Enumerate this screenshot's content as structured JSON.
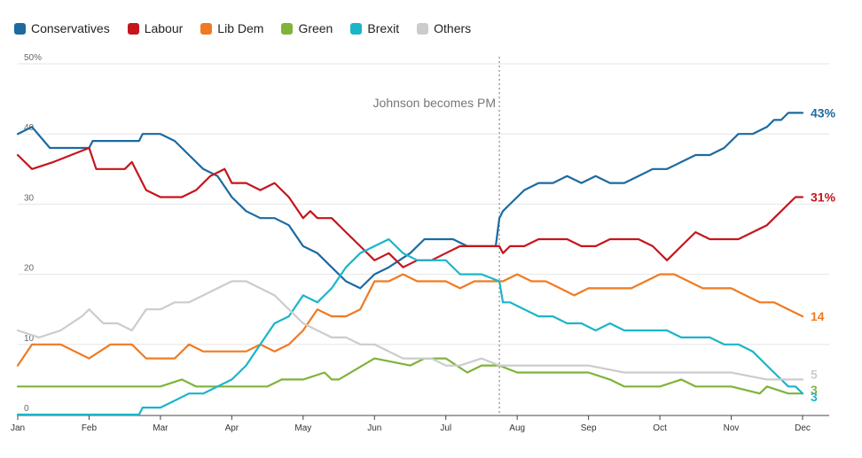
{
  "chart_data": {
    "type": "line",
    "title": "",
    "xlabel": "",
    "ylabel": "",
    "ylim": [
      0,
      50
    ],
    "xlim": [
      0,
      11
    ],
    "x_note": "x is months since 1 Jan (Jan=0 ... Dec=11)",
    "y_ticks": [
      {
        "value": 50,
        "label": "50%"
      },
      {
        "value": 40,
        "label": "40"
      },
      {
        "value": 30,
        "label": "30"
      },
      {
        "value": 20,
        "label": "20"
      },
      {
        "value": 10,
        "label": "10"
      },
      {
        "value": 0,
        "label": "0"
      }
    ],
    "x_ticks": [
      {
        "value": 0,
        "label": "Jan"
      },
      {
        "value": 1,
        "label": "Feb"
      },
      {
        "value": 2,
        "label": "Mar"
      },
      {
        "value": 3,
        "label": "Apr"
      },
      {
        "value": 4,
        "label": "May"
      },
      {
        "value": 5,
        "label": "Jun"
      },
      {
        "value": 6,
        "label": "Jul"
      },
      {
        "value": 7,
        "label": "Aug"
      },
      {
        "value": 8,
        "label": "Sep"
      },
      {
        "value": 9,
        "label": "Oct"
      },
      {
        "value": 10,
        "label": "Nov"
      },
      {
        "value": 11,
        "label": "Dec"
      }
    ],
    "annotation": {
      "text": "Johnson becomes PM",
      "x": 6.75
    },
    "legend_position": "top-left",
    "series": [
      {
        "name": "Conservatives",
        "color": "#1c6aa0",
        "end_label": "43%",
        "x": [
          0,
          0.2,
          0.45,
          1.0,
          1.05,
          1.7,
          1.75,
          2.0,
          2.2,
          2.4,
          2.6,
          2.8,
          3.0,
          3.2,
          3.4,
          3.6,
          3.8,
          4.0,
          4.2,
          4.4,
          4.6,
          4.8,
          5.0,
          5.2,
          5.35,
          5.5,
          5.7,
          5.9,
          6.1,
          6.3,
          6.5,
          6.7,
          6.75,
          6.8,
          6.9,
          7.1,
          7.3,
          7.5,
          7.7,
          7.9,
          8.1,
          8.3,
          8.5,
          8.7,
          8.9,
          9.1,
          9.3,
          9.5,
          9.7,
          9.9,
          10.1,
          10.3,
          10.5,
          10.6,
          10.7,
          10.8,
          10.9,
          11.0
        ],
        "y": [
          40,
          41,
          38,
          38,
          39,
          39,
          40,
          40,
          39,
          37,
          35,
          34,
          31,
          29,
          28,
          28,
          27,
          24,
          23,
          21,
          19,
          18,
          20,
          21,
          22,
          23,
          25,
          25,
          25,
          24,
          24,
          24,
          28,
          29,
          30,
          32,
          33,
          33,
          34,
          33,
          34,
          33,
          33,
          34,
          35,
          35,
          36,
          37,
          37,
          38,
          40,
          40,
          41,
          42,
          42,
          43,
          43,
          43
        ]
      },
      {
        "name": "Labour",
        "color": "#c4161c",
        "end_label": "31%",
        "x": [
          0,
          0.2,
          0.5,
          1.0,
          1.1,
          1.5,
          1.6,
          1.8,
          2.0,
          2.3,
          2.5,
          2.7,
          2.9,
          3.0,
          3.2,
          3.4,
          3.6,
          3.8,
          4.0,
          4.1,
          4.2,
          4.4,
          4.6,
          4.8,
          5.0,
          5.2,
          5.4,
          5.6,
          5.8,
          6.0,
          6.2,
          6.4,
          6.6,
          6.75,
          6.8,
          6.9,
          7.1,
          7.3,
          7.5,
          7.7,
          7.9,
          8.1,
          8.3,
          8.5,
          8.7,
          8.9,
          9.1,
          9.3,
          9.5,
          9.7,
          9.9,
          10.1,
          10.3,
          10.5,
          10.6,
          10.7,
          10.8,
          10.9,
          11.0
        ],
        "y": [
          37,
          35,
          36,
          38,
          35,
          35,
          36,
          32,
          31,
          31,
          32,
          34,
          35,
          33,
          33,
          32,
          33,
          31,
          28,
          29,
          28,
          28,
          26,
          24,
          22,
          23,
          21,
          22,
          22,
          23,
          24,
          24,
          24,
          24,
          23,
          24,
          24,
          25,
          25,
          25,
          24,
          24,
          25,
          25,
          25,
          24,
          22,
          24,
          26,
          25,
          25,
          25,
          26,
          27,
          28,
          29,
          30,
          31,
          31
        ]
      },
      {
        "name": "Lib Dem",
        "color": "#f07a22",
        "end_label": "14",
        "x": [
          0,
          0.2,
          0.6,
          1.0,
          1.3,
          1.6,
          1.8,
          2.2,
          2.4,
          2.6,
          2.8,
          3.0,
          3.2,
          3.4,
          3.6,
          3.8,
          4.0,
          4.2,
          4.4,
          4.6,
          4.8,
          5.0,
          5.2,
          5.4,
          5.6,
          5.8,
          6.0,
          6.2,
          6.4,
          6.6,
          6.8,
          7.0,
          7.2,
          7.4,
          7.6,
          7.8,
          8.0,
          8.2,
          8.4,
          8.6,
          8.8,
          9.0,
          9.2,
          9.4,
          9.6,
          9.8,
          10.0,
          10.2,
          10.4,
          10.6,
          10.8,
          11.0
        ],
        "y": [
          7,
          10,
          10,
          8,
          10,
          10,
          8,
          8,
          10,
          9,
          9,
          9,
          9,
          10,
          9,
          10,
          12,
          15,
          14,
          14,
          15,
          19,
          19,
          20,
          19,
          19,
          19,
          18,
          19,
          19,
          19,
          20,
          19,
          19,
          18,
          17,
          18,
          18,
          18,
          18,
          19,
          20,
          20,
          19,
          18,
          18,
          18,
          17,
          16,
          16,
          15,
          14
        ]
      },
      {
        "name": "Green",
        "color": "#7fb339",
        "end_label": "3",
        "x": [
          0,
          1.0,
          2.0,
          2.3,
          2.5,
          3.0,
          3.5,
          3.7,
          4.0,
          4.3,
          4.4,
          4.5,
          5.0,
          5.5,
          5.7,
          6.0,
          6.3,
          6.5,
          6.75,
          7.0,
          7.5,
          8.0,
          8.3,
          8.5,
          9.0,
          9.3,
          9.5,
          10.0,
          10.4,
          10.5,
          10.8,
          11.0
        ],
        "y": [
          4,
          4,
          4,
          5,
          4,
          4,
          4,
          5,
          5,
          6,
          5,
          5,
          8,
          7,
          8,
          8,
          6,
          7,
          7,
          6,
          6,
          6,
          5,
          4,
          4,
          5,
          4,
          4,
          3,
          4,
          3,
          3
        ]
      },
      {
        "name": "Brexit",
        "color": "#1bb5c9",
        "end_label": "3",
        "x": [
          0,
          1.0,
          1.7,
          1.75,
          2.0,
          2.2,
          2.4,
          2.6,
          3.0,
          3.2,
          3.4,
          3.6,
          3.8,
          4.0,
          4.2,
          4.4,
          4.6,
          4.8,
          5.0,
          5.2,
          5.3,
          5.4,
          5.6,
          5.8,
          6.0,
          6.2,
          6.5,
          6.75,
          6.8,
          6.9,
          7.1,
          7.3,
          7.5,
          7.7,
          7.9,
          8.1,
          8.3,
          8.5,
          8.7,
          8.9,
          9.1,
          9.3,
          9.5,
          9.7,
          9.9,
          10.1,
          10.3,
          10.5,
          10.6,
          10.7,
          10.8,
          10.9,
          11.0
        ],
        "y": [
          0,
          0,
          0,
          1,
          1,
          2,
          3,
          3,
          5,
          7,
          10,
          13,
          14,
          17,
          16,
          18,
          21,
          23,
          24,
          25,
          24,
          23,
          22,
          22,
          22,
          20,
          20,
          19,
          16,
          16,
          15,
          14,
          14,
          13,
          13,
          12,
          13,
          12,
          12,
          12,
          12,
          11,
          11,
          11,
          10,
          10,
          9,
          7,
          6,
          5,
          4,
          4,
          3
        ]
      },
      {
        "name": "Others",
        "color": "#cccccc",
        "end_label": "5",
        "x": [
          0,
          0.3,
          0.6,
          0.9,
          1.0,
          1.2,
          1.4,
          1.6,
          1.8,
          2.0,
          2.2,
          2.4,
          2.6,
          2.8,
          3.0,
          3.2,
          3.4,
          3.6,
          3.8,
          4.0,
          4.2,
          4.4,
          4.6,
          4.8,
          5.0,
          5.2,
          5.4,
          5.6,
          5.8,
          6.0,
          6.2,
          6.5,
          6.75,
          7.0,
          7.5,
          8.0,
          8.5,
          9.0,
          9.5,
          10.0,
          10.5,
          11.0
        ],
        "y": [
          12,
          11,
          12,
          14,
          15,
          13,
          13,
          12,
          15,
          15,
          16,
          16,
          17,
          18,
          19,
          19,
          18,
          17,
          15,
          13,
          12,
          11,
          11,
          10,
          10,
          9,
          8,
          8,
          8,
          7,
          7,
          8,
          7,
          7,
          7,
          7,
          6,
          6,
          6,
          6,
          5,
          5
        ]
      }
    ]
  }
}
